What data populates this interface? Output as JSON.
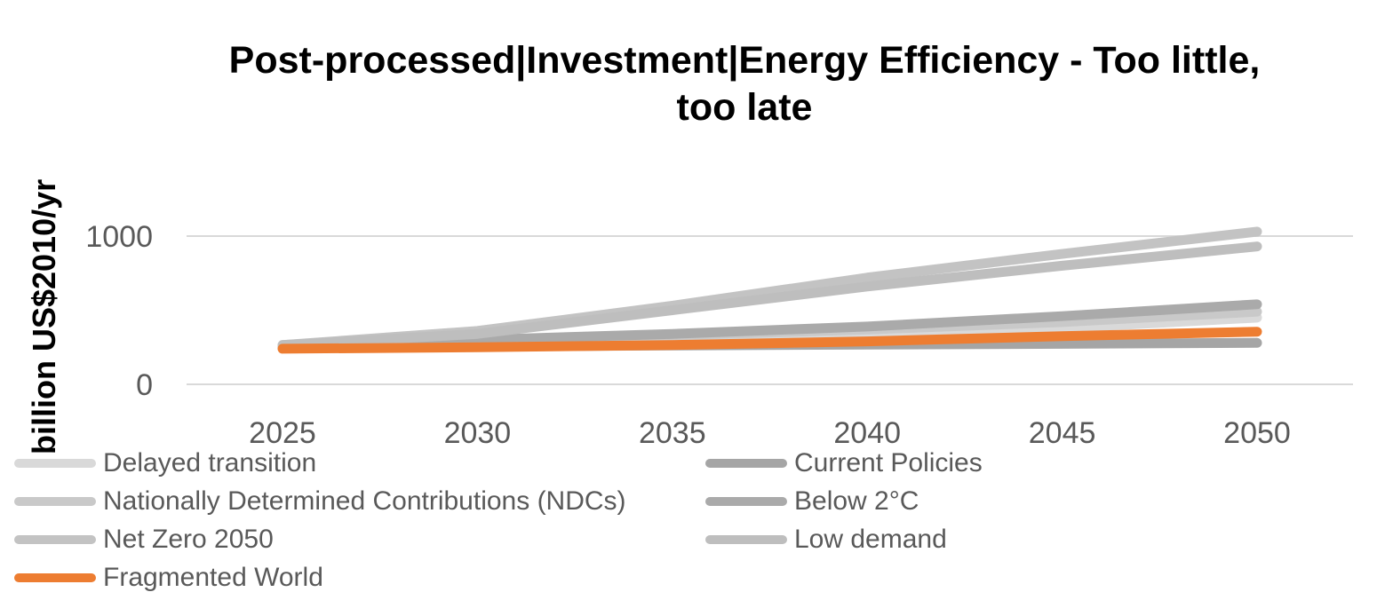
{
  "chart_data": {
    "type": "line",
    "title_lines": [
      "Post-processed|Investment|Energy Efficiency - Too little,",
      "too late"
    ],
    "ylabel": "billion US$2010/yr",
    "xlabel": "",
    "x": [
      2025,
      2030,
      2035,
      2040,
      2045,
      2050
    ],
    "x_tick_labels": [
      "2025",
      "2030",
      "2035",
      "2040",
      "2045",
      "2050"
    ],
    "y_ticks": [
      0,
      1000
    ],
    "y_tick_labels": [
      "0",
      "1000"
    ],
    "ylim": [
      0,
      1000
    ],
    "grid": true,
    "legend_position": "bottom",
    "series": [
      {
        "name": "Delayed transition",
        "color": "#d9d9d9",
        "values": [
          250,
          265,
          285,
          320,
          380,
          450
        ]
      },
      {
        "name": "Current Policies",
        "color": "#a5a5a5",
        "values": [
          245,
          255,
          262,
          268,
          273,
          280
        ]
      },
      {
        "name": "Nationally Determined Contributions (NDCs)",
        "color": "#c9c9c9",
        "values": [
          255,
          290,
          330,
          370,
          420,
          490
        ]
      },
      {
        "name": "Below 2°C",
        "color": "#aaaaaa",
        "values": [
          260,
          300,
          340,
          390,
          460,
          540
        ]
      },
      {
        "name": "Net Zero 2050",
        "color": "#c3c3c3",
        "values": [
          265,
          360,
          530,
          720,
          880,
          1030
        ]
      },
      {
        "name": "Low demand",
        "color": "#bebebe",
        "values": [
          265,
          340,
          500,
          660,
          800,
          930
        ]
      },
      {
        "name": "Fragmented World",
        "color": "#ed7d31",
        "values": [
          240,
          250,
          265,
          290,
          325,
          355
        ]
      }
    ]
  }
}
